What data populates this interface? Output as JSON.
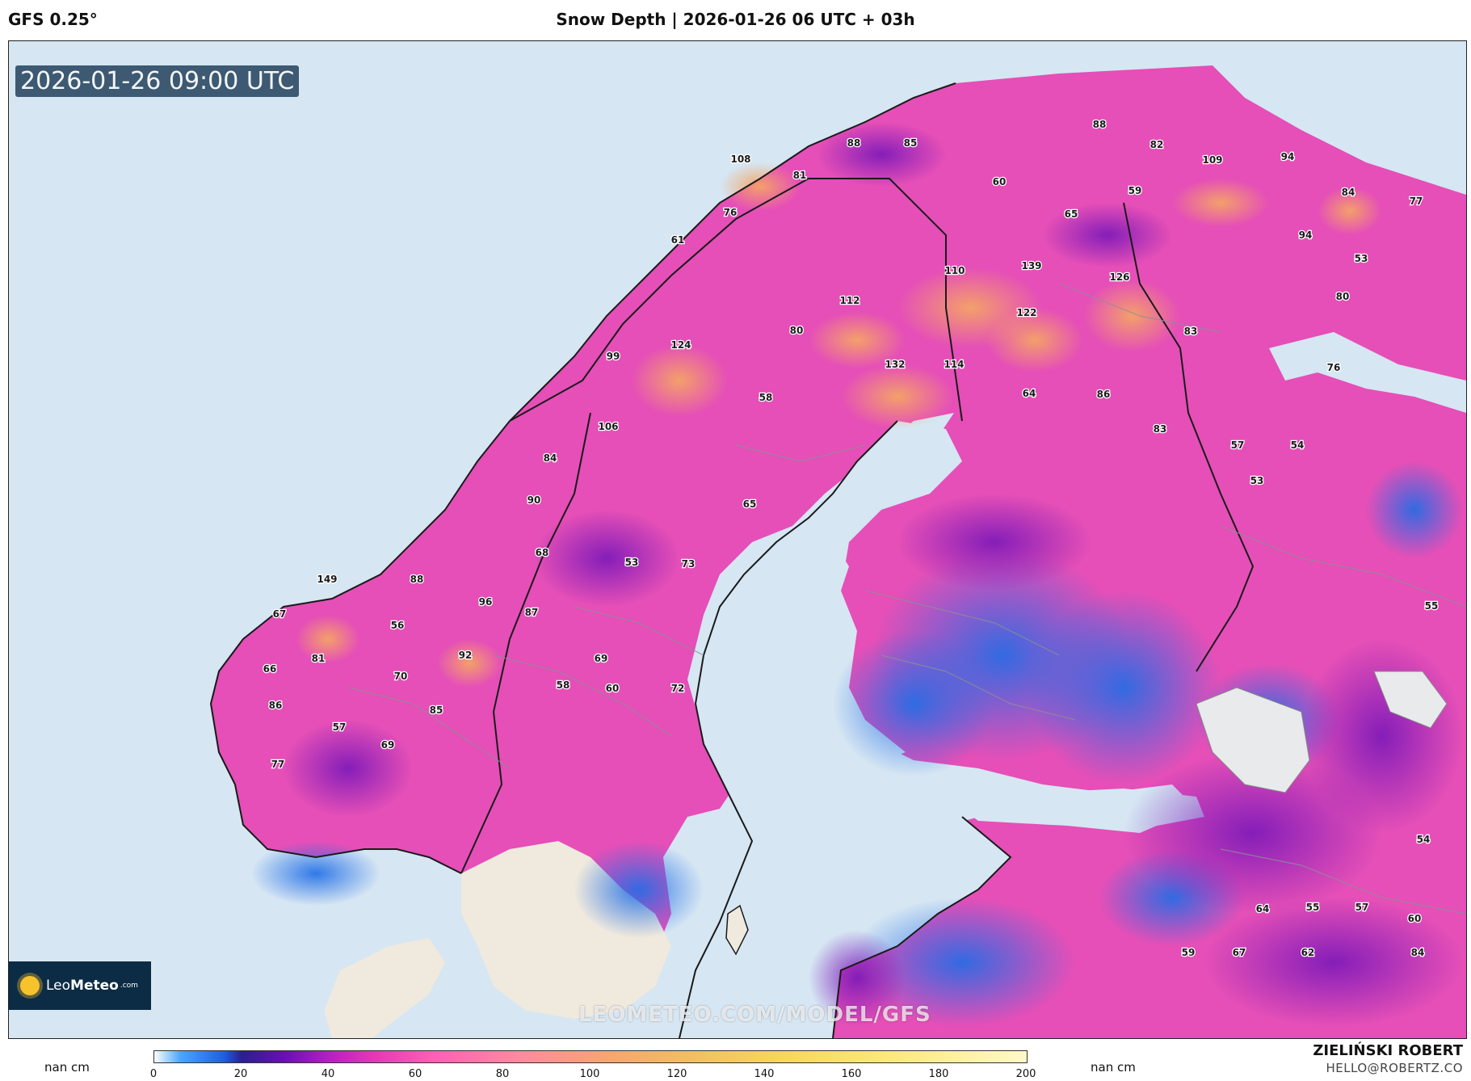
{
  "header": {
    "model": "GFS 0.25°",
    "title": "Snow Depth | 2026-01-26 06 UTC + 03h"
  },
  "map": {
    "valid_time": "2026-01-26 09:00 UTC",
    "watermark": "LEOMETEO.COM/MODEL/GFS",
    "logo": {
      "name_light": "Leo",
      "name_bold": "Meteo",
      "domain": ".com"
    },
    "value_labels": [
      "108",
      "81",
      "88",
      "85",
      "88",
      "82",
      "109",
      "94",
      "84",
      "77",
      "60",
      "59",
      "65",
      "76",
      "61",
      "94",
      "53",
      "110",
      "139",
      "126",
      "80",
      "112",
      "122",
      "124",
      "80",
      "83",
      "99",
      "132",
      "114",
      "76",
      "58",
      "64",
      "86",
      "106",
      "83",
      "57",
      "54",
      "84",
      "53",
      "90",
      "65",
      "68",
      "53",
      "73",
      "149",
      "88",
      "96",
      "87",
      "67",
      "56",
      "55",
      "81",
      "92",
      "69",
      "66",
      "70",
      "72",
      "86",
      "58",
      "60",
      "85",
      "57",
      "69",
      "77",
      "54",
      "64",
      "55",
      "57",
      "60",
      "59",
      "67",
      "62",
      "84"
    ],
    "colors": {
      "sea": "#d6e6f3",
      "bare_land": "#efe9de",
      "border": "#1a1a1a"
    }
  },
  "legend": {
    "left_label": "nan cm",
    "right_label": "nan cm",
    "ticks": [
      "0",
      "20",
      "40",
      "60",
      "80",
      "100",
      "120",
      "140",
      "160",
      "180",
      "200"
    ]
  },
  "signature": {
    "name": "ZIELIŃSKI ROBERT",
    "email": "HELLO@ROBERTZ.CO"
  }
}
